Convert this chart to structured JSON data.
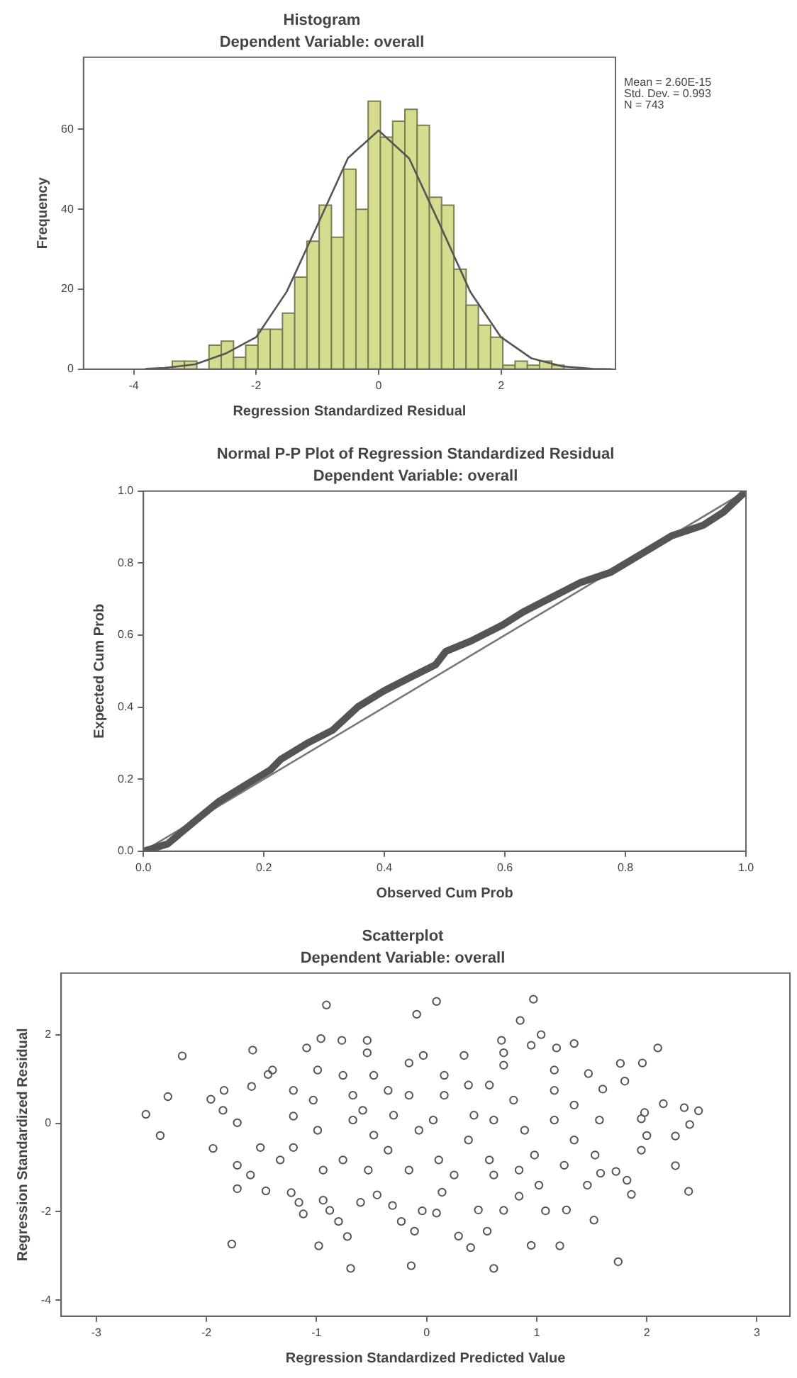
{
  "chart_data": [
    {
      "type": "histogram",
      "title": "Histogram",
      "subtitle": "Dependent Variable: overall",
      "xlabel": "Regression Standardized Residual",
      "ylabel": "Frequency",
      "annotations": [
        "Mean = 2.60E-15",
        "Std. Dev. = 0.993",
        "N = 743"
      ],
      "xlim": [
        -4.82,
        3.87
      ],
      "ylim": [
        0,
        78
      ],
      "xticks": [
        -4,
        -2,
        0,
        2
      ],
      "yticks": [
        0,
        20,
        40,
        60
      ],
      "series": [
        {
          "color": "#d6dc8e",
          "bins": [
            -3.37,
            -3.17,
            -2.97,
            -2.77,
            -2.57,
            -2.37,
            -2.17,
            -1.97,
            -1.77,
            -1.57,
            -1.37,
            -1.17,
            -0.97,
            -0.77,
            -0.57,
            -0.37,
            -0.17,
            0.03,
            0.23,
            0.43,
            0.63,
            0.83,
            1.03,
            1.23,
            1.43,
            1.63,
            1.83,
            2.03,
            2.23,
            2.43,
            2.63,
            2.83,
            3.03
          ],
          "values": [
            2,
            2,
            0,
            6,
            7,
            3,
            6,
            10,
            10,
            14,
            23,
            32,
            41,
            33,
            50,
            40,
            67,
            58,
            62,
            65,
            61,
            43,
            41,
            25,
            16,
            11,
            8,
            1,
            2,
            1,
            2,
            1
          ]
        },
        {
          "type": "line",
          "color": "#555555",
          "x": [
            -3.8,
            -3.5,
            -3,
            -2.5,
            -2,
            -1.5,
            -1,
            -0.5,
            0,
            0.5,
            1,
            1.5,
            2,
            2.5,
            3,
            3.5,
            3.8
          ],
          "values": [
            0.1,
            0.3,
            1.2,
            3.9,
            8,
            19.4,
            36,
            52.8,
            59.7,
            52.7,
            36.2,
            19.3,
            8,
            2.7,
            0.7,
            0.1,
            0
          ]
        }
      ]
    },
    {
      "type": "line",
      "title": "Normal P-P Plot of Regression Standardized Residual",
      "subtitle": "Dependent Variable: overall",
      "xlabel": "Observed Cum Prob",
      "ylabel": "Expected Cum Prob",
      "xlim": [
        0,
        1
      ],
      "ylim": [
        0,
        1
      ],
      "xticks": [
        {
          "value": 0,
          "label": "0.0"
        },
        {
          "value": 0.2,
          "label": "0.2"
        },
        {
          "value": 0.4,
          "label": "0.4"
        },
        {
          "value": 0.6,
          "label": "0.6"
        },
        {
          "value": 0.8,
          "label": "0.8"
        },
        {
          "value": 1,
          "label": "1.0"
        }
      ],
      "yticks": [
        {
          "value": 0,
          "label": "0.0"
        },
        {
          "value": 0.2,
          "label": "0.2"
        },
        {
          "value": 0.4,
          "label": "0.4"
        },
        {
          "value": 0.6,
          "label": "0.6"
        },
        {
          "value": 0.8,
          "label": "0.8"
        },
        {
          "value": 1,
          "label": "1.0"
        }
      ],
      "series": [
        {
          "color": "#555555",
          "x": [
            0,
            0.04,
            0.083,
            0.126,
            0.168,
            0.211,
            0.228,
            0.271,
            0.314,
            0.356,
            0.399,
            0.442,
            0.485,
            0.502,
            0.544,
            0.596,
            0.63,
            0.673,
            0.724,
            0.775,
            0.826,
            0.877,
            0.929,
            0.963,
            1
          ],
          "values": [
            0,
            0.02,
            0.08,
            0.139,
            0.182,
            0.226,
            0.255,
            0.299,
            0.336,
            0.401,
            0.445,
            0.482,
            0.518,
            0.555,
            0.584,
            0.628,
            0.664,
            0.701,
            0.745,
            0.774,
            0.825,
            0.876,
            0.905,
            0.942,
            1
          ]
        },
        {
          "color": "#777777",
          "x": [
            0,
            1
          ],
          "values": [
            0,
            1
          ]
        }
      ]
    },
    {
      "type": "scatter",
      "title": "Scatterplot",
      "subtitle": "Dependent Variable: overall",
      "xlabel": "Regression Standardized Predicted Value",
      "ylabel": "Regression Standardized Residual",
      "xlim": [
        -3.32,
        3.3
      ],
      "ylim": [
        -4.36,
        3.39
      ],
      "xticks": [
        -3,
        -2,
        -1,
        0,
        1,
        2,
        3
      ],
      "yticks": [
        -4,
        -2,
        0,
        2
      ],
      "marker": "circle",
      "series": [
        {
          "color": "#555555",
          "x": [
            -2.55,
            -2.42,
            -2.35,
            -2.22,
            -1.96,
            -1.94,
            -1.77,
            -1.58,
            -0.91,
            -0.09,
            0.09,
            0.97,
            0.85,
            1.04,
            2.1,
            1.34,
            2.47,
            2.34,
            2.15,
            2.39,
            2.26,
            2.26,
            2.38,
            1.86,
            1.96,
            1.76,
            1.74,
            0.61,
            -0.14,
            -0.69,
            -0.98,
            0.4,
            0.55,
            0.29,
            0.95,
            1.21,
            1.52,
            1.27,
            1.08,
            0.7,
            0.47,
            0.09,
            -0.04,
            -0.23,
            -0.11,
            -0.8,
            -0.72,
            -1.12,
            -0.88,
            -0.6,
            -0.45,
            -0.31,
            0.14,
            0.84,
            1.46,
            1.58,
            1.72,
            1.82,
            1.95,
            2.0,
            1.95,
            1.98,
            1.6,
            1.8,
            1.47,
            1.16,
            1.18,
            0.95,
            0.68,
            0.7,
            0.34,
            -0.03,
            -0.16,
            -0.54,
            -0.54,
            -0.77,
            -0.96,
            -1.09,
            -1.4,
            -1.59,
            -1.84,
            -1.85,
            -1.72,
            -1.72,
            -1.72,
            -1.6,
            -1.46,
            -1.23,
            -1.16,
            -0.94,
            -1.33,
            -1.21,
            -1.51,
            -1.21,
            -1.21,
            -1.44,
            -0.99,
            -1.03,
            -0.99,
            -0.94,
            -0.76,
            -0.67,
            -0.58,
            -0.67,
            -0.76,
            -0.48,
            -0.48,
            -0.53,
            -0.35,
            -0.3,
            -0.35,
            -0.16,
            -0.07,
            -0.16,
            0.11,
            0.06,
            0.16,
            0.16,
            0.38,
            0.43,
            0.38,
            0.25,
            0.57,
            0.61,
            0.57,
            0.79,
            0.89,
            0.98,
            0.84,
            1.02,
            1.16,
            1.16,
            1.34,
            1.34,
            1.25,
            1.53,
            1.57,
            0.7,
            0.61
          ],
          "values": [
            0.2,
            -0.28,
            0.6,
            1.52,
            0.54,
            -0.57,
            -2.73,
            1.65,
            2.67,
            2.46,
            2.75,
            2.8,
            2.32,
            2.0,
            1.7,
            1.8,
            0.28,
            0.35,
            0.44,
            -0.03,
            -0.29,
            -0.96,
            -1.54,
            -1.61,
            1.36,
            1.35,
            -3.13,
            -3.28,
            -3.22,
            -3.28,
            -2.77,
            -2.81,
            -2.44,
            -2.55,
            -2.76,
            -2.77,
            -2.19,
            -1.96,
            -1.98,
            -1.97,
            -1.96,
            -2.03,
            -1.98,
            -2.22,
            -2.44,
            -2.22,
            -2.56,
            -2.05,
            -1.97,
            -1.79,
            -1.62,
            -1.86,
            -1.56,
            -1.65,
            -1.4,
            -1.13,
            -1.09,
            -1.29,
            -0.61,
            -0.28,
            0.1,
            0.24,
            0.77,
            0.95,
            1.12,
            1.2,
            1.7,
            1.76,
            1.87,
            1.59,
            1.53,
            1.53,
            1.36,
            1.87,
            1.59,
            1.87,
            1.91,
            1.7,
            1.2,
            0.83,
            0.74,
            0.29,
            0.01,
            -0.95,
            -1.48,
            -1.17,
            -1.53,
            -1.57,
            -1.79,
            -1.74,
            -0.83,
            -0.55,
            -0.55,
            0.16,
            0.74,
            1.1,
            1.2,
            0.52,
            -0.16,
            -1.06,
            -0.83,
            0.07,
            0.29,
            0.63,
            1.08,
            1.08,
            -0.27,
            -1.06,
            -0.61,
            0.18,
            0.74,
            0.63,
            -0.16,
            -1.06,
            -0.83,
            0.07,
            0.63,
            1.08,
            0.86,
            0.18,
            -0.38,
            -1.17,
            -0.83,
            0.07,
            0.86,
            0.52,
            -0.16,
            -0.72,
            -1.06,
            -1.4,
            0.07,
            0.74,
            0.41,
            -0.38,
            -0.95,
            -0.72,
            0.07,
            1.31,
            -1.17
          ]
        }
      ]
    }
  ]
}
